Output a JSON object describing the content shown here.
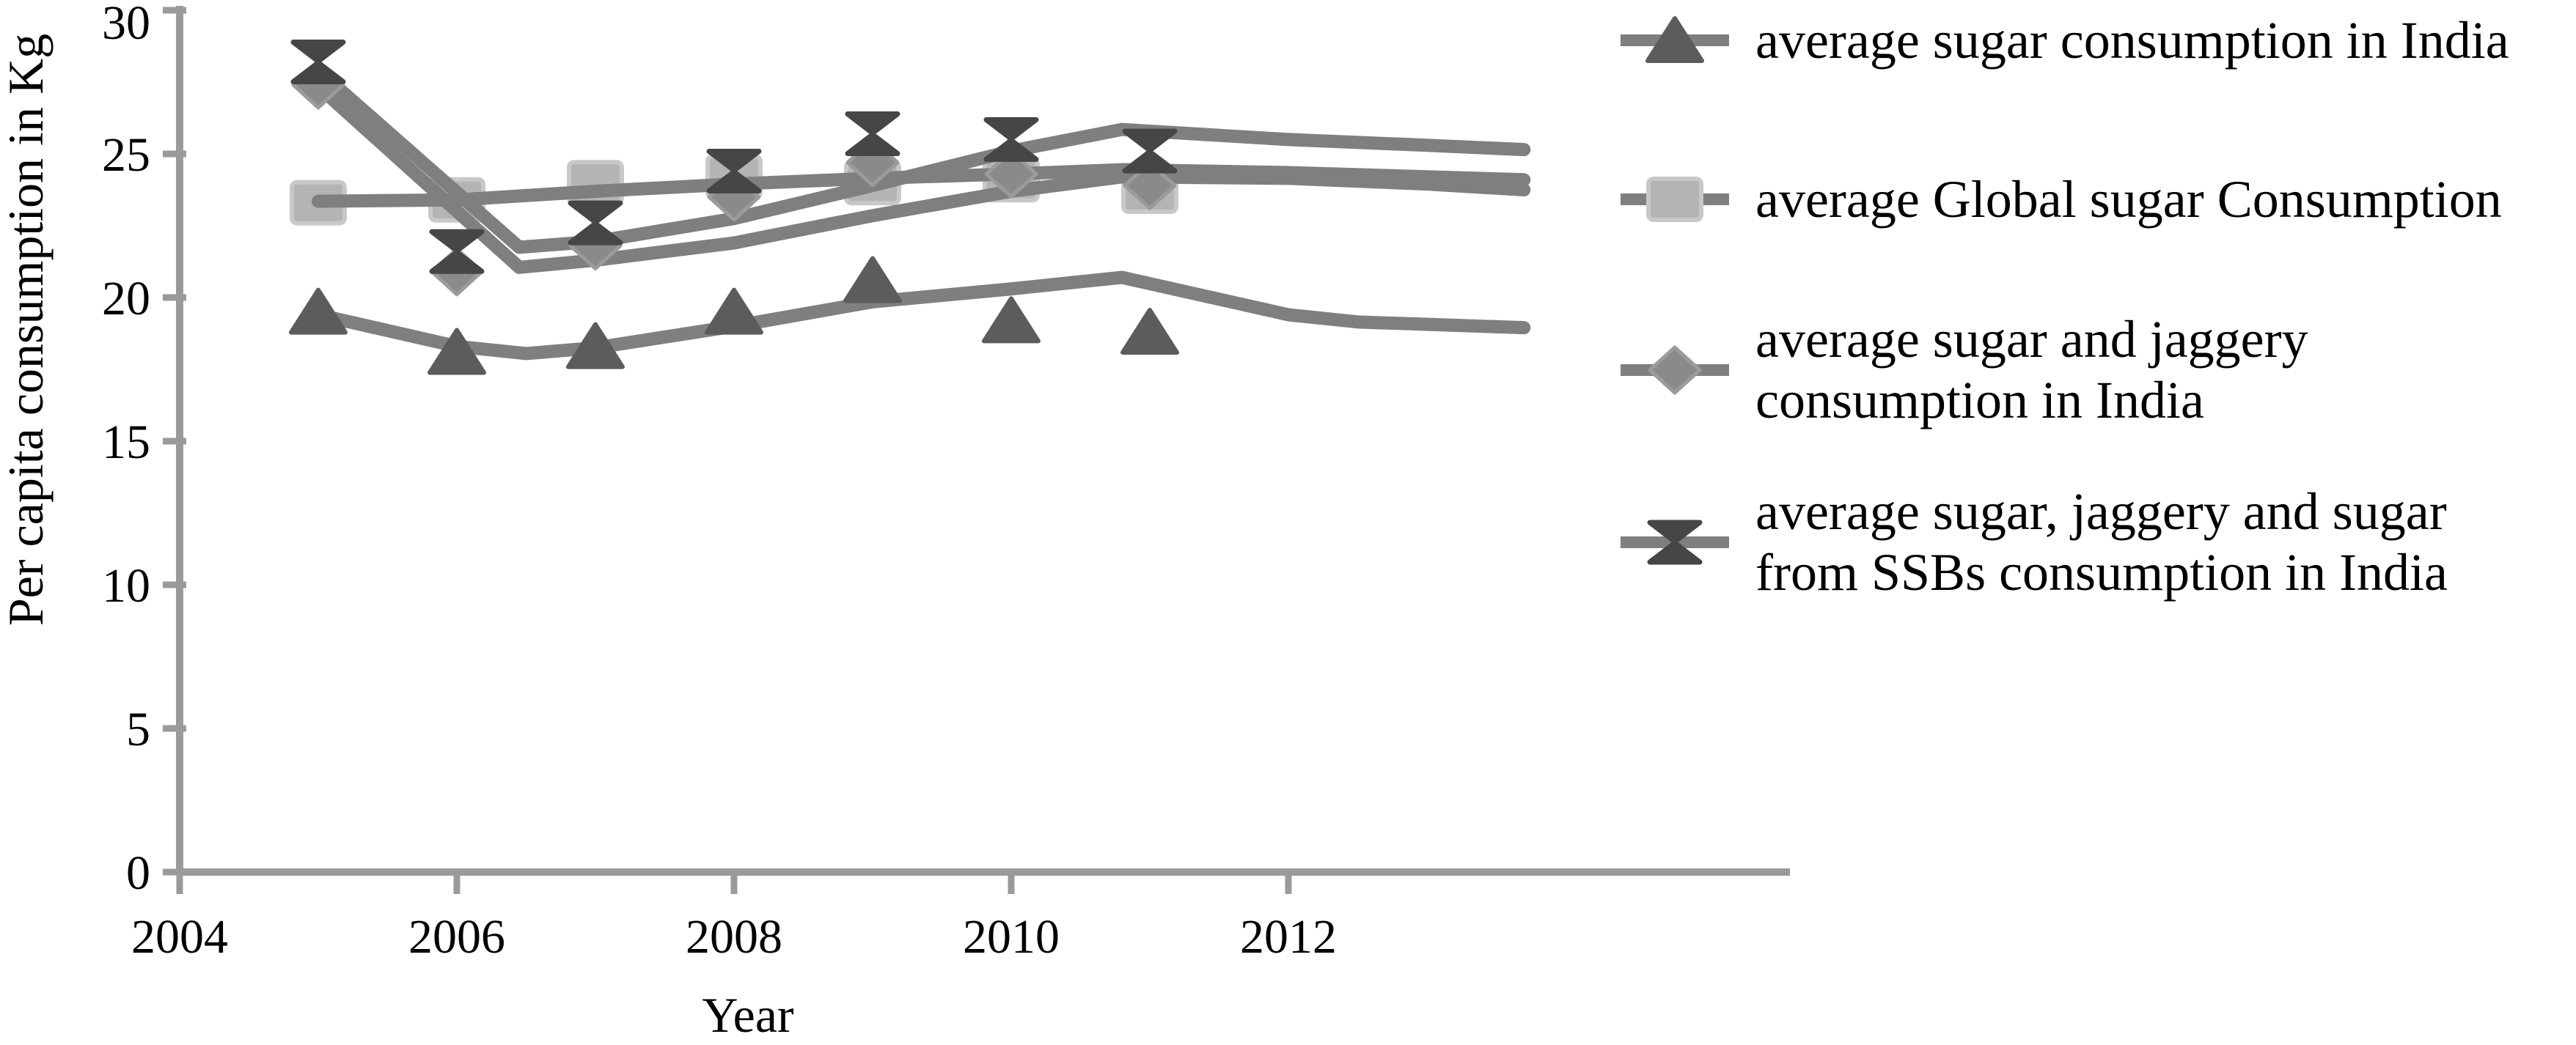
{
  "figure": {
    "background": "#ffffff",
    "axis_color": "#9a9a9a",
    "trend_line_color": "#7f7f7f",
    "text_color": "#000000"
  },
  "chart_data": {
    "type": "line",
    "title": "",
    "xlabel": "Year",
    "ylabel": "Per capita consumption in Kg",
    "x_tick_labels": [
      "2004",
      "2006",
      "2008",
      "2010",
      "2012"
    ],
    "x_tick_years": [
      2004,
      2006,
      2008,
      2010,
      2012
    ],
    "y_ticks": [
      0,
      5,
      10,
      15,
      20,
      25,
      30
    ],
    "xlim": [
      2004,
      2015.6
    ],
    "ylim": [
      0,
      30
    ],
    "grid": false,
    "legend_position": "right",
    "years": [
      2005,
      2006,
      2007,
      2008,
      2009,
      2010,
      2011
    ],
    "series": [
      {
        "name": "average sugar consumption in India",
        "marker": "triangle",
        "fill": "#5c5c5c",
        "edge": "#5c5c5c",
        "values": [
          19.5,
          18.1,
          18.3,
          19.5,
          20.6,
          19.2,
          18.8
        ],
        "trend": [
          [
            2005,
            19.4
          ],
          [
            2006,
            18.3
          ],
          [
            2006.5,
            18.05
          ],
          [
            2007,
            18.25
          ],
          [
            2008,
            19.0
          ],
          [
            2009,
            19.85
          ],
          [
            2010,
            20.3
          ],
          [
            2010.8,
            20.7
          ],
          [
            2012,
            19.4
          ],
          [
            2012.5,
            19.15
          ],
          [
            2013.7,
            18.95
          ]
        ]
      },
      {
        "name": "average Global sugar Consumption",
        "marker": "square",
        "fill": "#b4b4b4",
        "edge": "#c8c8c8",
        "values": [
          23.3,
          23.4,
          24.0,
          24.2,
          24.0,
          24.1,
          23.7
        ],
        "trend": [
          [
            2005,
            23.35
          ],
          [
            2006,
            23.4
          ],
          [
            2007,
            23.7
          ],
          [
            2008,
            23.95
          ],
          [
            2009,
            24.15
          ],
          [
            2010,
            24.3
          ],
          [
            2010.8,
            24.45
          ],
          [
            2012,
            24.35
          ],
          [
            2013.7,
            24.1
          ]
        ]
      },
      {
        "name": "average sugar and jaggery consumption in India",
        "marker": "diamond",
        "fill": "#8a8a8a",
        "edge": "#9b9b9b",
        "values": [
          27.4,
          20.9,
          21.8,
          23.5,
          24.7,
          24.3,
          23.9
        ],
        "trend": [
          [
            2005,
            27.35
          ],
          [
            2006.45,
            21.05
          ],
          [
            2007,
            21.3
          ],
          [
            2008,
            21.9
          ],
          [
            2009,
            22.85
          ],
          [
            2010,
            23.7
          ],
          [
            2010.8,
            24.2
          ],
          [
            2012,
            24.15
          ],
          [
            2013,
            23.95
          ],
          [
            2013.7,
            23.75
          ]
        ]
      },
      {
        "name": "average sugar, jaggery and sugar from SSBs consumption in India",
        "marker": "xcross",
        "fill": "#464646",
        "edge": "#464646",
        "values": [
          28.2,
          21.6,
          22.6,
          24.4,
          25.7,
          25.5,
          25.1
        ],
        "trend": [
          [
            2005,
            27.9
          ],
          [
            2006.45,
            21.75
          ],
          [
            2007,
            21.95
          ],
          [
            2008,
            22.75
          ],
          [
            2009,
            23.9
          ],
          [
            2010,
            25.1
          ],
          [
            2010.8,
            25.85
          ],
          [
            2012,
            25.5
          ],
          [
            2013,
            25.3
          ],
          [
            2013.7,
            25.15
          ]
        ]
      }
    ]
  },
  "legend": {
    "items": [
      {
        "marker": "triangle",
        "lines": [
          "average sugar consumption in India"
        ]
      },
      {
        "marker": "square",
        "lines": [
          "average Global sugar Consumption"
        ]
      },
      {
        "marker": "diamond",
        "lines": [
          "average sugar and jaggery",
          "consumption in India"
        ]
      },
      {
        "marker": "xcross",
        "lines": [
          "average sugar, jaggery and sugar",
          "from SSBs consumption in India"
        ]
      }
    ]
  }
}
